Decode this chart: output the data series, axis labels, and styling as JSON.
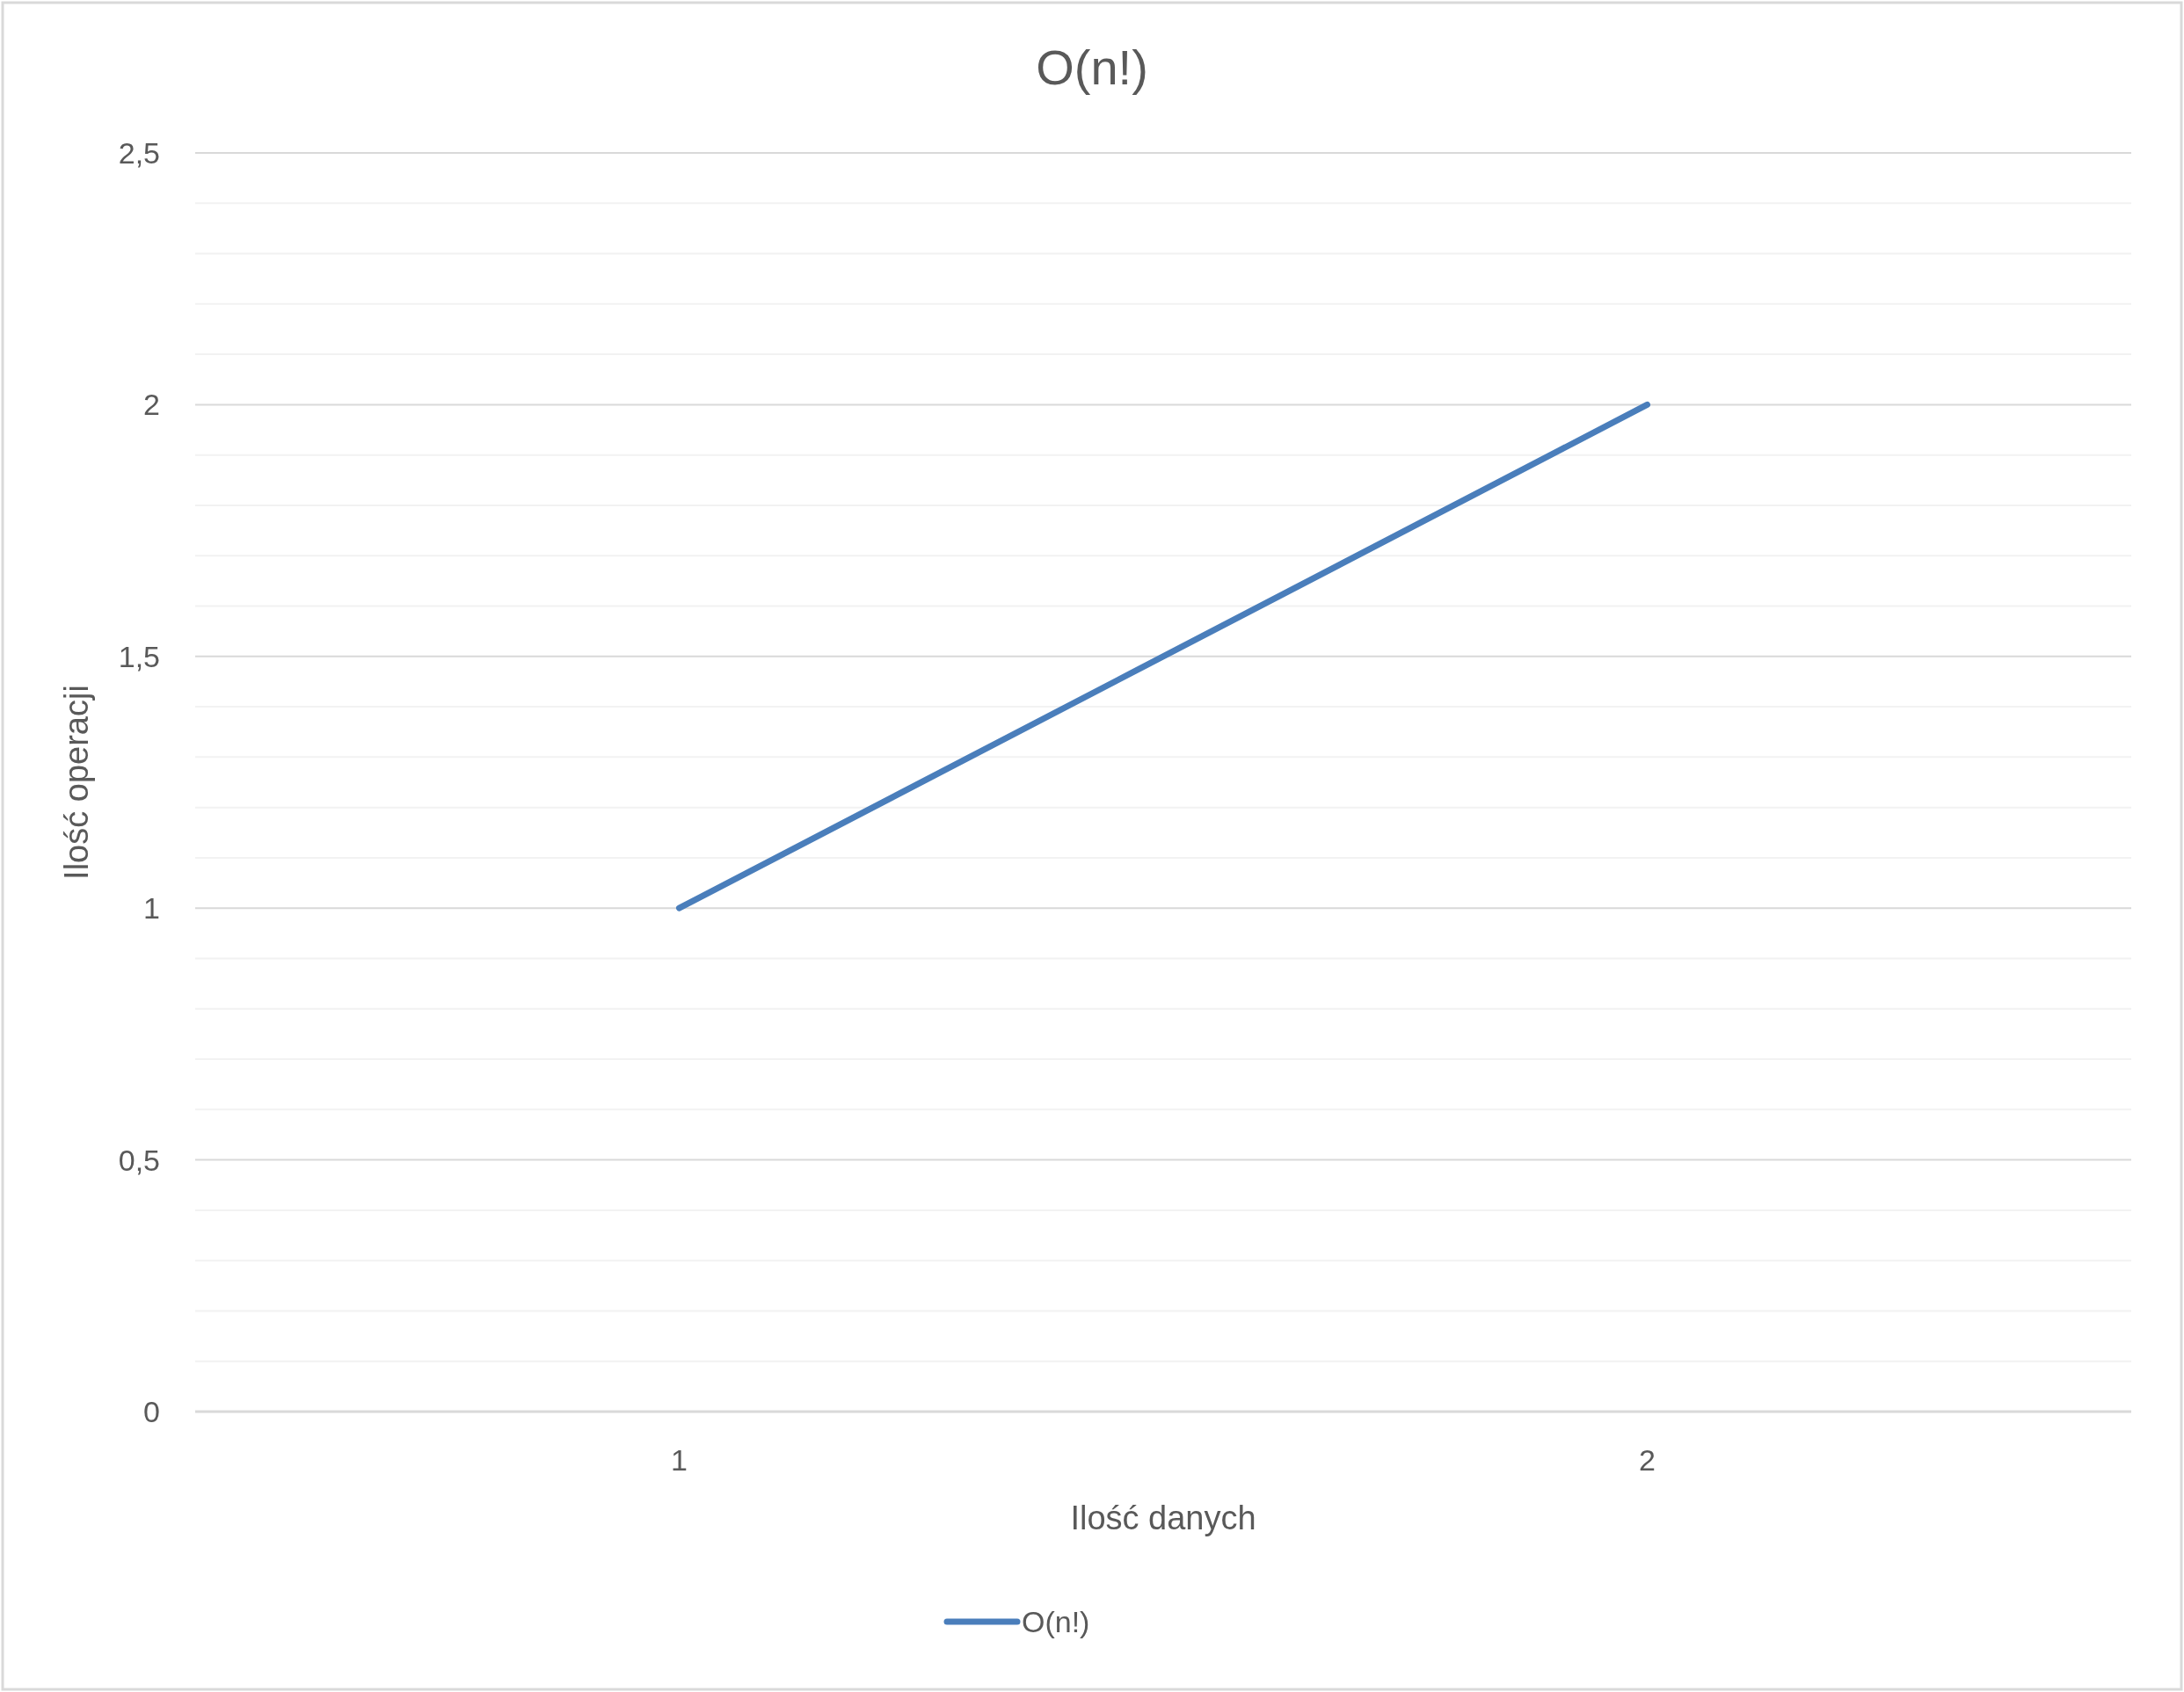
{
  "chart_data": {
    "type": "line",
    "title": "O(n!)",
    "xlabel": "Ilość danych",
    "ylabel": "Ilość operacji",
    "categories": [
      "1",
      "2"
    ],
    "series": [
      {
        "name": "O(n!)",
        "color": "#4a7ebb",
        "values": [
          1,
          2
        ]
      }
    ],
    "ylim": [
      0,
      2.5
    ],
    "yticks": [
      {
        "value": 0,
        "label": "0"
      },
      {
        "value": 0.1,
        "label": null
      },
      {
        "value": 0.2,
        "label": null
      },
      {
        "value": 0.3,
        "label": null
      },
      {
        "value": 0.4,
        "label": null
      },
      {
        "value": 0.5,
        "label": "0,5"
      },
      {
        "value": 0.6,
        "label": null
      },
      {
        "value": 0.7,
        "label": null
      },
      {
        "value": 0.8,
        "label": null
      },
      {
        "value": 0.9,
        "label": null
      },
      {
        "value": 1,
        "label": "1"
      },
      {
        "value": 1.1,
        "label": null
      },
      {
        "value": 1.2,
        "label": null
      },
      {
        "value": 1.3,
        "label": null
      },
      {
        "value": 1.4,
        "label": null
      },
      {
        "value": 1.5,
        "label": "1,5"
      },
      {
        "value": 1.6,
        "label": null
      },
      {
        "value": 1.7,
        "label": null
      },
      {
        "value": 1.8,
        "label": null
      },
      {
        "value": 1.9,
        "label": null
      },
      {
        "value": 2,
        "label": "2"
      },
      {
        "value": 2.1,
        "label": null
      },
      {
        "value": 2.2,
        "label": null
      },
      {
        "value": 2.3,
        "label": null
      },
      {
        "value": 2.4,
        "label": null
      },
      {
        "value": 2.5,
        "label": "2,5"
      }
    ],
    "grid": "y",
    "legend": "bottom",
    "marker": "none",
    "line_style": "solid"
  }
}
